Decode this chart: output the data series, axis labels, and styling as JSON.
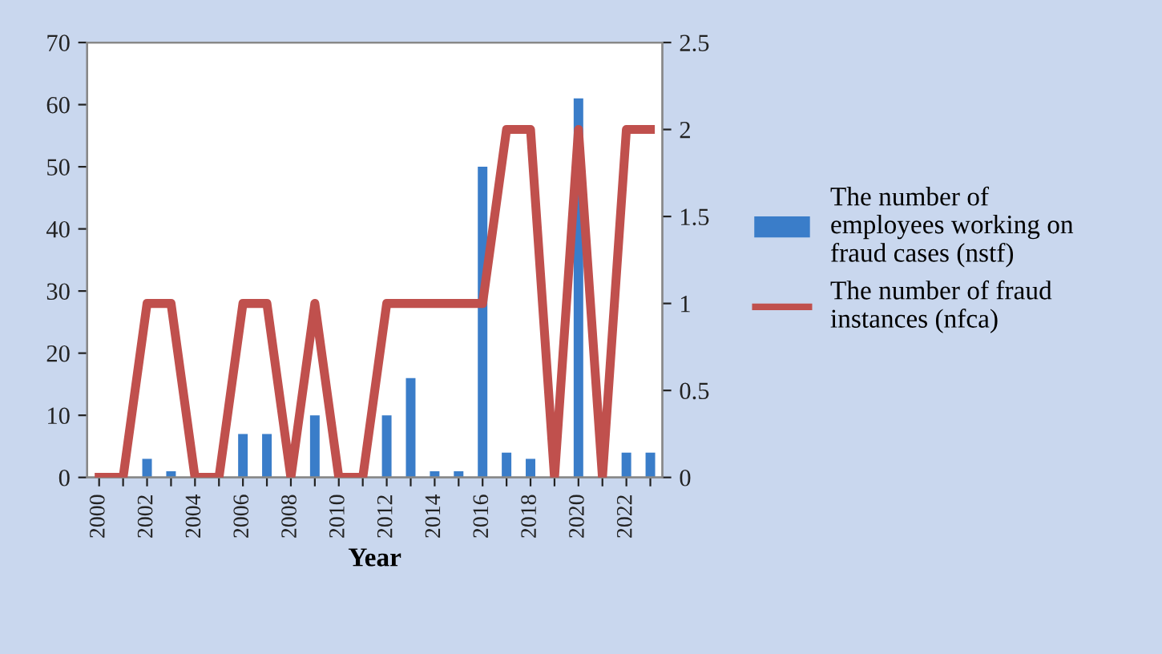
{
  "chart_data": {
    "type": "bar",
    "xlabel": "Year",
    "categories": [
      "2000",
      null,
      "2002",
      null,
      "2004",
      null,
      "2006",
      null,
      "2008",
      null,
      "2010",
      null,
      "2012",
      null,
      "2014",
      null,
      "2016",
      null,
      "2018",
      null,
      "2020",
      null,
      "2022",
      null
    ],
    "series": [
      {
        "name": "The number of employees working on fraud cases (nstf)",
        "color": "#3a7dc9",
        "values": [
          0,
          0,
          3,
          1,
          0,
          0,
          7,
          7,
          0,
          10,
          0,
          0,
          10,
          16,
          1,
          1,
          50,
          4,
          3,
          0,
          61,
          0,
          4,
          4
        ]
      },
      {
        "name": "The number of fraud instances (nfca)",
        "type": "line",
        "axis": "y2",
        "color": "#c0504d",
        "values": [
          0,
          0,
          1,
          1,
          0,
          0,
          1,
          1,
          0,
          1,
          0,
          0,
          1,
          1,
          1,
          1,
          1,
          2,
          2,
          0,
          2,
          0,
          2,
          2
        ]
      }
    ],
    "ylim": [
      0,
      70
    ],
    "yticks": [
      0,
      10,
      20,
      30,
      40,
      50,
      60,
      70
    ],
    "y2lim": [
      0,
      2.5
    ],
    "y2ticks": [
      0,
      0.5,
      1,
      1.5,
      2,
      2.5
    ],
    "legend": "right",
    "grid": false
  }
}
